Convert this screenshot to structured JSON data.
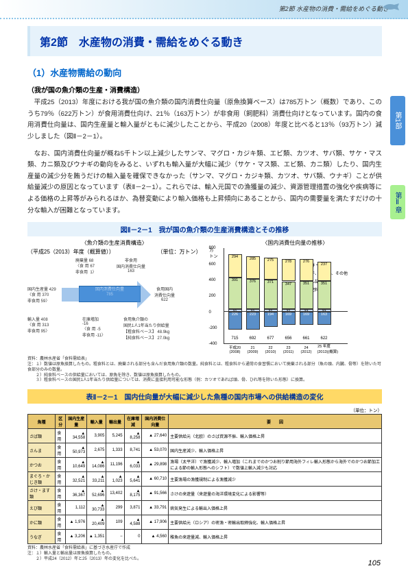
{
  "header": {
    "breadcrumb": "第2節 水産物の消費・需給をめぐる動き"
  },
  "section_title": "第2節　水産物の消費・需給をめぐる動き",
  "sub1": "（1）水産物需給の動向",
  "sub2": "（我が国の魚介類の生産・消費構造）",
  "para1": "　平成25（2013）年度における我が国の魚介類の国内消費仕向量（原魚換算ベース）は785万トン（概数）であり、このうち79％（622万トン）が食用消費仕向け、21％（163万トン）が非食用（飼肥料）消費仕向けとなっています。国内の食用消費仕向量は、国内生産量と輸入量がともに減少したことから、平成20（2008）年度と比べると13％（93万トン）減少しました（図Ⅱ－2－1）。",
  "para2": "　なお、国内消費仕向量が概ね5千トン以上減少したサンマ、マグロ・カジキ類、エビ類、カツオ、サバ類、サケ・マス類、カニ類及びウナギの動向をみると、いずれも輸入量が大幅に減少（サケ・マス類、エビ類、カニ類）したり、国内生産量の減少分を賄うだけの輸入量を確保できなかった（サンマ、マグロ・カジキ類、カツオ、サバ類、ウナギ）ことが供給量減少の原因となっています（表Ⅱ－2－1）。これらでは、輸入元国での漁獲量の減少、資源管理措置の強化や疾病等による価格の上昇等がみられるほか、為替変動により輸入価格も上昇傾向にあることから、国内の需要量を満たすだけの十分な輸入が困難となっています。",
  "figure_label": "図Ⅱ－2－1　我が国の魚介類の生産消費構造とその推移",
  "chart_left_title": "〈魚介類の生産消費構造〉",
  "chart_left_sub": "（平成25（2013）年度（概算値））",
  "unit_label": "（単位：万トン）",
  "sankey": {
    "dom_prod": "国内生産量 429",
    "dom_prod_detail": "〈食 用 370\n非食用 59〉",
    "waste": "廃棄量 68",
    "waste_detail": "〈食 用 67\n非食用  1〉",
    "nonfood_top": "非食用\n国内消費仕向量\n163",
    "main": "国内消費仕向量\n785",
    "food_right": "食用国内\n消費仕向量\n622",
    "import": "輸入量 408",
    "import_detail": "〈食 用 313\n非食用 95〉",
    "stock": "在庫増加\n-16",
    "stock_detail": "〈食 用 -5\n非食用 -11〉",
    "percap": "食用魚介類の\n国民1人1年当たり供給量\n【粗食料ベース】 48.9kg\n【純食料ベース】 27.0kg"
  },
  "chart_right_title": "〈国内消費仕向量の推移〉",
  "chart_right_ylabel": "万\nトン",
  "bar_chart": {
    "ymax": 800,
    "ytick": 200,
    "years": [
      "平成20\n(2008)",
      "21\n(2009)",
      "22\n(2010)",
      "23\n(2011)",
      "24\n(2012)",
      "25 年度\n(2013)(概算)"
    ],
    "totals": [
      715,
      692,
      677,
      656,
      661,
      622
    ],
    "seg_fresh": [
      294,
      285,
      275,
      278,
      276,
      237
    ],
    "seg_dried": [
      391,
      376,
      371,
      347,
      351,
      351
    ],
    "seg_can": [
      31,
      31,
      31,
      31,
      33,
      33
    ],
    "nonfood": [
      226,
      223,
      194,
      169,
      169,
      163
    ],
    "colors": {
      "fresh": "#fff2a8",
      "dried": "#cde6a8",
      "can": "#c9ddf4",
      "feed": "#5a8fc9"
    },
    "legend": [
      "生鮮・冷凍",
      "塩干、くん製、その他",
      "かん詰",
      "飼肥料"
    ]
  },
  "notes1": "資料：農林水産省「食料需給表」\n注：１）数値は原魚換算したもの。粗食料とは、廃棄される部分も含んだ食用魚介類の数量。純食料とは、粗食料から通常の食習慣において廃棄される部分（魚の頭、内臓、骨等）を除いた可食部分のみの数量。\n　　２）純食料ベースの供給量においては、原魚を除き、数値は原魚換算したもの。\n　　３）粗食料ベースの国民1人1年当たり供給量については、消費に直接利用可能な形態（例：カツオであれば頭、骨、ひれ等を除いた形態）に換算。",
  "table_label": "表Ⅱ－2－1　国内仕向量が大幅に減少した魚種の国内市場への供給構造の変化",
  "table_unit": "（単位：トン）",
  "table": {
    "headers": [
      "魚種",
      "区分",
      "国内生産量",
      "輸入量",
      "輸出量",
      "在庫増減",
      "国内消費仕向量",
      "要　　因"
    ],
    "rows": [
      [
        "さば類",
        "食用",
        "▲ 34,558",
        "3,905",
        "5,245",
        "▲ 8,258",
        "▲ 27,640",
        "主要供給元（北欧）のさば資源不振、輸入価格上昇"
      ],
      [
        "さんま",
        "食用",
        "▲ 50,973",
        "2,675",
        "1,333",
        "8,741",
        "▲ 53,070",
        "国内生産減少、輸入価格上昇"
      ],
      [
        "かつお",
        "食用",
        "▲ 10,649",
        "▲ 14,086",
        "11,196",
        "▲ 6,033",
        "▲ 29,898",
        "漁場（太平洋）で漁獲減少、輸入増加（これまでのかつお削り節用海外フィレ輸入形態から海外でのかつお節加工による節の輸入形態へのシフト）で数値上輸入減少も対応"
      ],
      [
        "まぐろ・かじき類",
        "食用",
        "▲ 32,521",
        "▲ 33,211",
        "▲ 1,023",
        "▲ 5,641",
        "▲ 60,710",
        "主要漁場の漁獲規制による漁獲減少"
      ],
      [
        "さけ・ます類",
        "食用",
        "▲ 36,367",
        "▲ 52,696",
        "13,402",
        "▲ 8,175",
        "▲ 91,566",
        "さけの来遊量（来遊量の海洋環境変化による影響等）"
      ],
      [
        "えび類",
        "食用",
        "1,112",
        "▲ 30,733",
        "299",
        "3,871",
        "▲ 33,791",
        "病気発生による輸出入価格上昇"
      ],
      [
        "かに類",
        "食用",
        "▲ 1,976",
        "▲ 20,409",
        "109",
        "▲ 4,588",
        "▲ 17,906",
        "主要供給元（ロシア）の密漁・密輸出取締強化、輸入価格上昇"
      ],
      [
        "うなぎ",
        "食用",
        "▲ 3,206",
        "▲ 1,351",
        "−",
        "0",
        "▲ 4,560",
        "稚魚の来遊量減、輸入価格上昇"
      ]
    ]
  },
  "notes2": "資料：農林水産省「食料需給表」に基づき水産庁で作成\n注：１）輸入量と輸出量は原魚換算したもの。\n　　２）平成24（2012）年と25（2013）年の変化を比べた。",
  "page_number": "105",
  "side_tab_1": "第1部",
  "side_tab_2": "第Ⅱ章"
}
